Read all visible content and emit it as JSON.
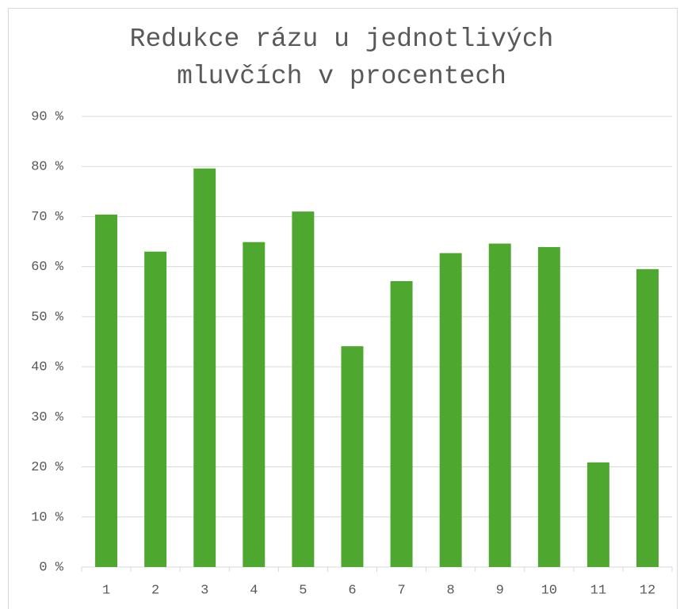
{
  "chart_data": {
    "type": "bar",
    "title": "Redukce rázu u jednotlivých mluvčích v procentech",
    "categories": [
      "1",
      "2",
      "3",
      "4",
      "5",
      "6",
      "7",
      "8",
      "9",
      "10",
      "11",
      "12"
    ],
    "values": [
      70.4,
      63.0,
      79.6,
      64.9,
      71.0,
      44.1,
      57.1,
      62.7,
      64.6,
      63.9,
      20.9,
      59.5
    ],
    "color": "#4ea72e",
    "ylim": [
      0,
      90
    ],
    "yticks": [
      {
        "value": 0,
        "label": "0 %"
      },
      {
        "value": 10,
        "label": "10 %"
      },
      {
        "value": 20,
        "label": "20 %"
      },
      {
        "value": 30,
        "label": "30 %"
      },
      {
        "value": 40,
        "label": "40 %"
      },
      {
        "value": 50,
        "label": "50 %"
      },
      {
        "value": 60,
        "label": "60 %"
      },
      {
        "value": 70,
        "label": "70 %"
      },
      {
        "value": 80,
        "label": "80 %"
      },
      {
        "value": 90,
        "label": "90 %"
      }
    ],
    "grid": true
  }
}
